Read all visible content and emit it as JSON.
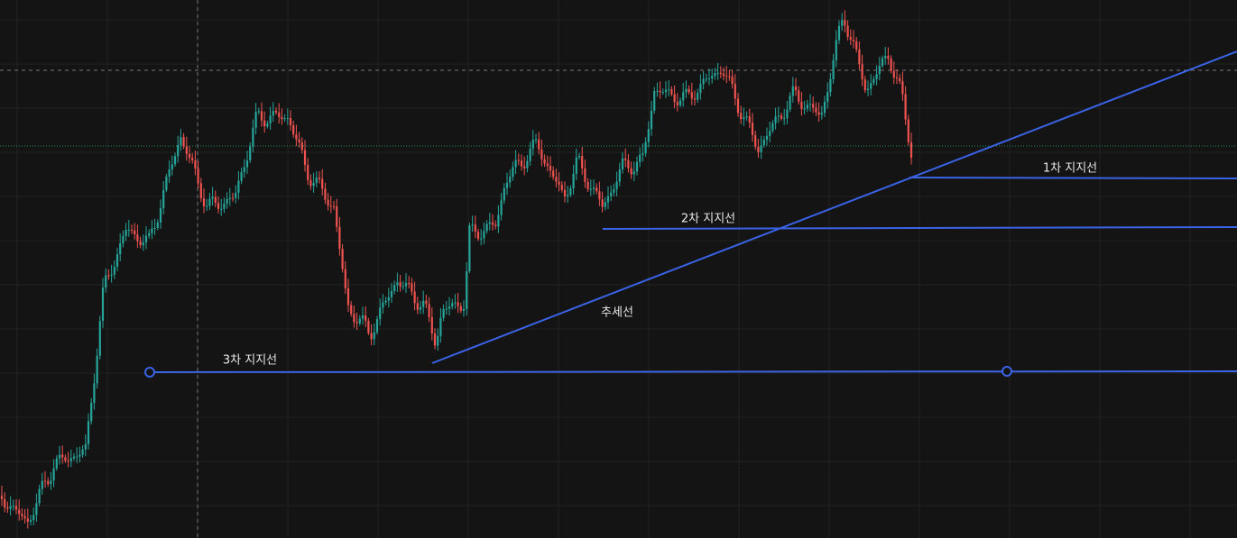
{
  "annotations": {
    "support_1": "1차 지지선",
    "support_2": "2차 지지선",
    "support_3": "3차 지지선",
    "trend_line": "추세선"
  }
}
